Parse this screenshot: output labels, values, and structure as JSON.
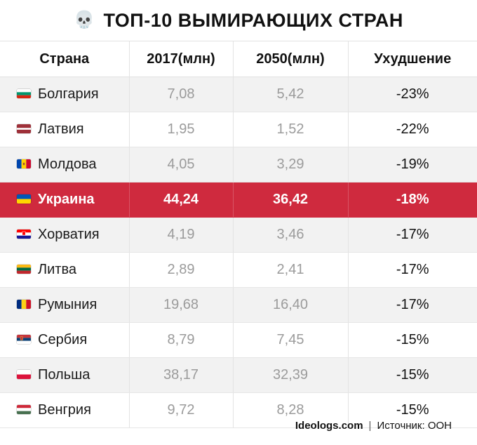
{
  "title": {
    "icon": "skull-icon",
    "emoji": "💀",
    "text": "ТОП-10 ВЫМИРАЮЩИХ СТРАН"
  },
  "table": {
    "headers": [
      "Страна",
      "2017(млн)",
      "2050(млн)",
      "Ухудшение"
    ],
    "rows": [
      {
        "country": "Болгария",
        "flag": "bulgaria-flag-icon",
        "y2017": "7,08",
        "y2050": "5,42",
        "change": "-23%"
      },
      {
        "country": "Латвия",
        "flag": "latvia-flag-icon",
        "y2017": "1,95",
        "y2050": "1,52",
        "change": "-22%"
      },
      {
        "country": "Молдова",
        "flag": "moldova-flag-icon",
        "y2017": "4,05",
        "y2050": "3,29",
        "change": "-19%"
      },
      {
        "country": "Украина",
        "flag": "ukraine-flag-icon",
        "y2017": "44,24",
        "y2050": "36,42",
        "change": "-18%",
        "highlighted": true
      },
      {
        "country": "Хорватия",
        "flag": "croatia-flag-icon",
        "y2017": "4,19",
        "y2050": "3,46",
        "change": "-17%"
      },
      {
        "country": "Литва",
        "flag": "lithuania-flag-icon",
        "y2017": "2,89",
        "y2050": "2,41",
        "change": "-17%"
      },
      {
        "country": "Румыния",
        "flag": "romania-flag-icon",
        "y2017": "19,68",
        "y2050": "16,40",
        "change": "-17%"
      },
      {
        "country": "Сербия",
        "flag": "serbia-flag-icon",
        "y2017": "8,79",
        "y2050": "7,45",
        "change": "-15%"
      },
      {
        "country": "Польша",
        "flag": "poland-flag-icon",
        "y2017": "38,17",
        "y2050": "32,39",
        "change": "-15%"
      },
      {
        "country": "Венгрия",
        "flag": "hungary-flag-icon",
        "y2017": "9,72",
        "y2050": "8,28",
        "change": "-15%"
      }
    ]
  },
  "footer": {
    "site": "Ideologs.com",
    "separator": "|",
    "source": "Источник: ООН"
  },
  "colors": {
    "highlight": "#cf2a3e",
    "stripe": "#f2f2f2",
    "muted_number": "#9b9b9b"
  }
}
